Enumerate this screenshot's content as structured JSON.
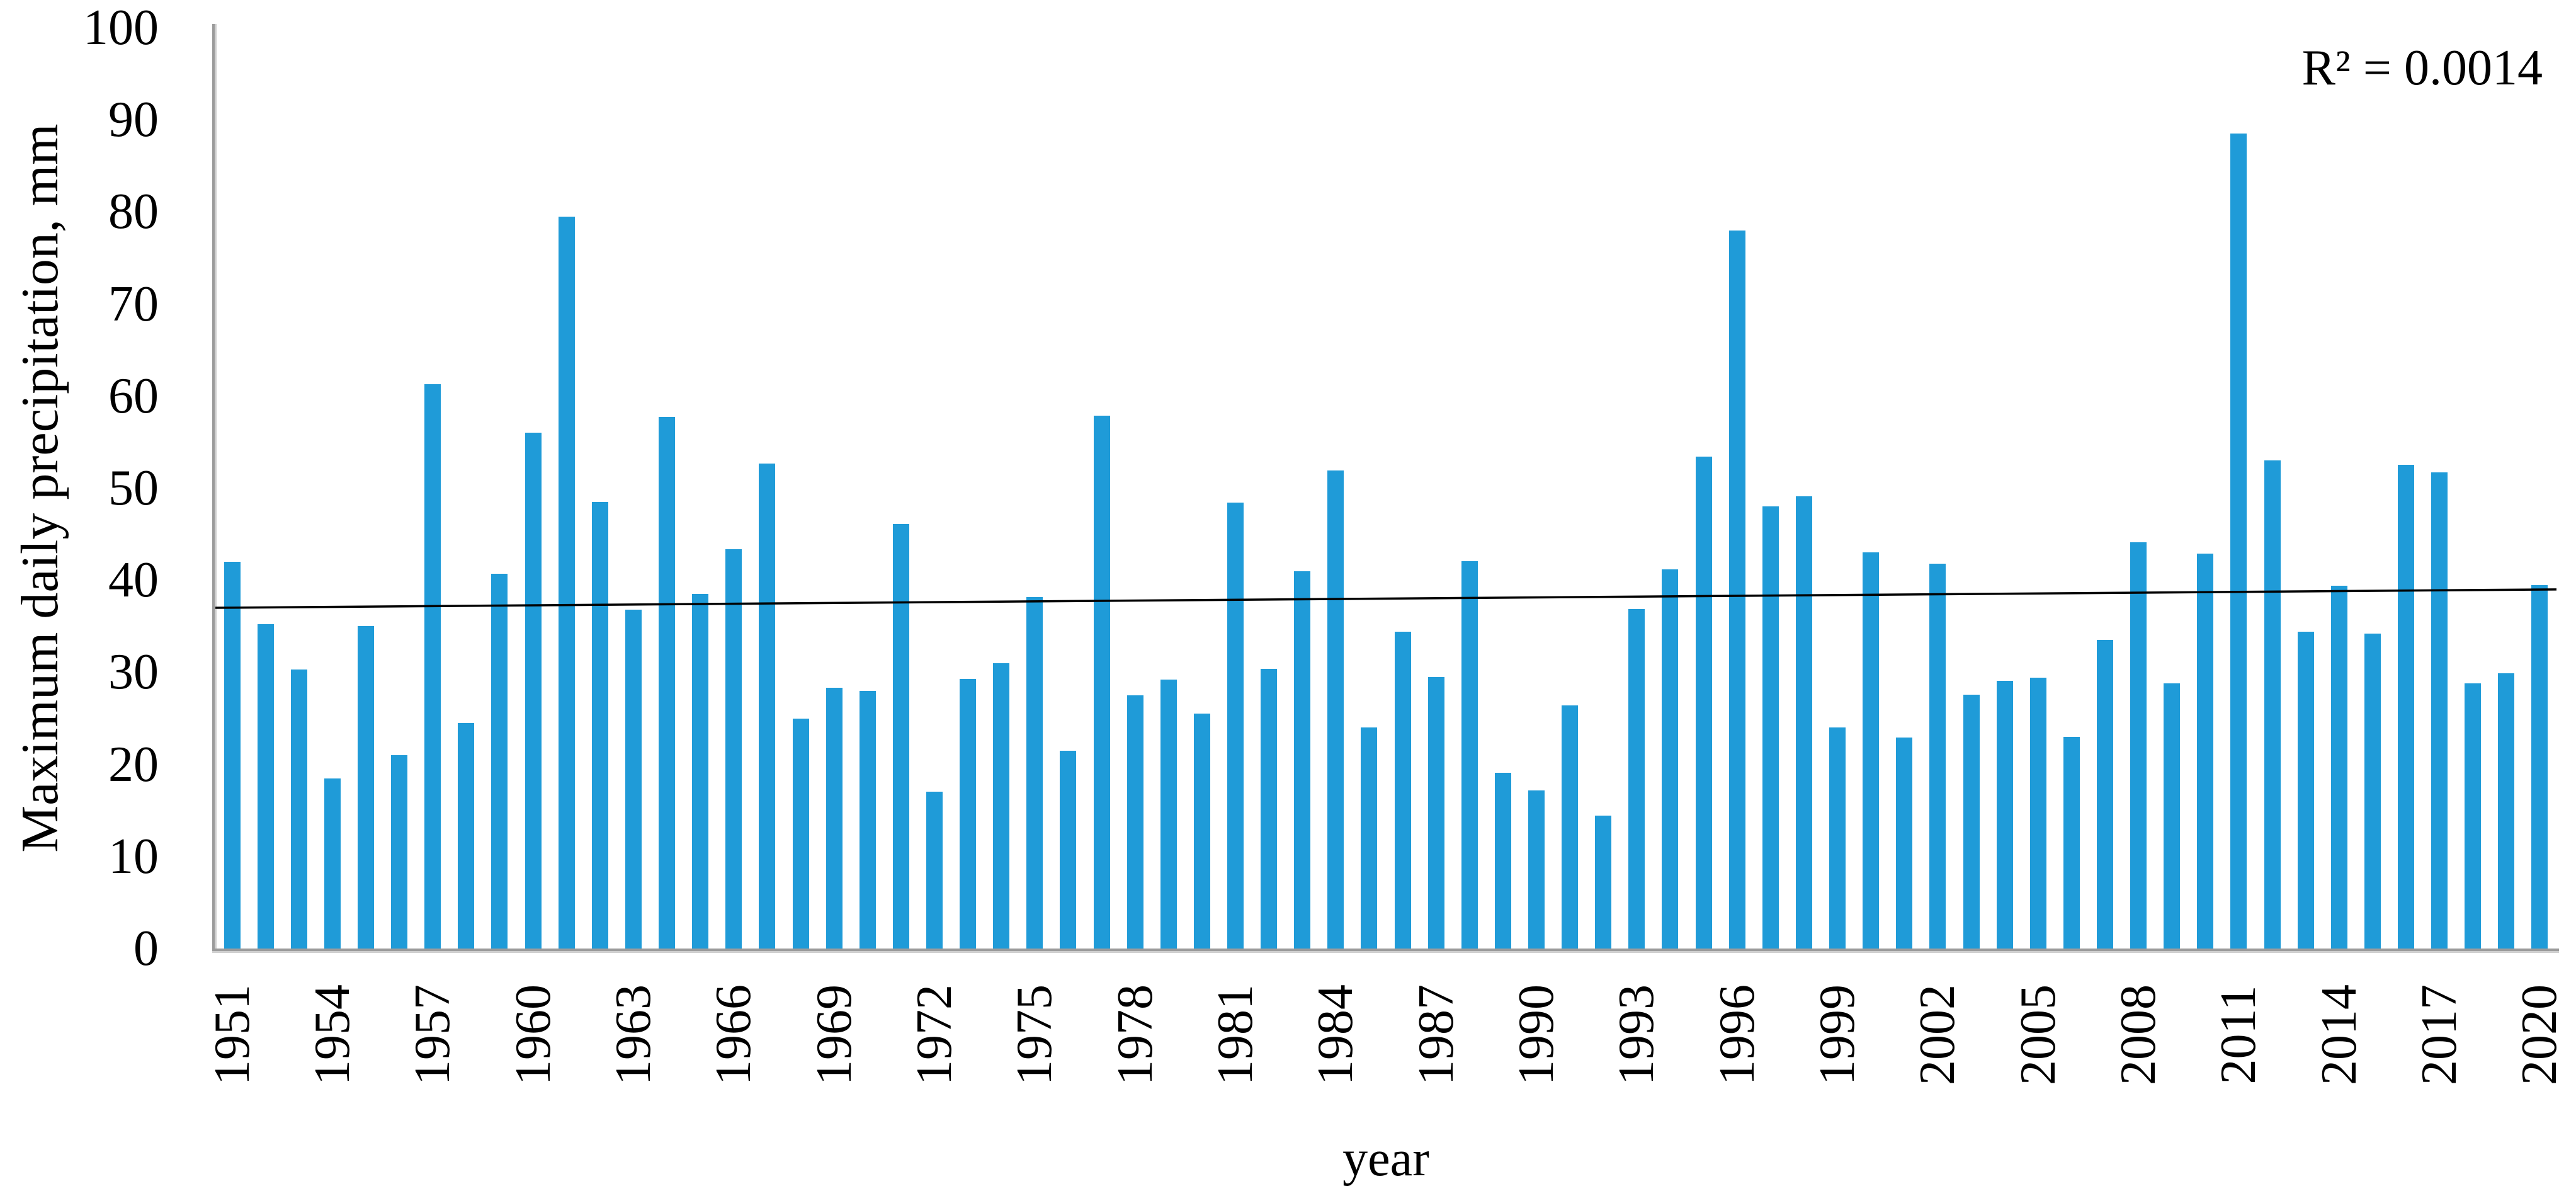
{
  "figure": {
    "background": "#ffffff"
  },
  "axes": {
    "y_title": "Maximum daily precipitation, mm",
    "x_title": "year",
    "y_ticks": [
      0,
      10,
      20,
      30,
      40,
      50,
      60,
      70,
      80,
      90,
      100
    ],
    "x_tick_labels": [
      "1951",
      "1954",
      "1957",
      "1960",
      "1963",
      "1966",
      "1969",
      "1972",
      "1975",
      "1978",
      "1981",
      "1984",
      "1987",
      "1990",
      "1993",
      "1996",
      "1999",
      "2002",
      "2005",
      "2008",
      "2011",
      "2014",
      "2017",
      "2020"
    ],
    "x_tick_step": 3
  },
  "annotations": {
    "r_squared": "R² = 0.0014"
  },
  "colors": {
    "bar": "#1f9bd8",
    "axis_line": "#9b9b9b",
    "trend_line": "#000000",
    "text": "#000000"
  },
  "chart_data": {
    "type": "bar",
    "title": "",
    "xlabel": "year",
    "ylabel": "Maximum daily precipitation, mm",
    "ylim": [
      0,
      100
    ],
    "grid": false,
    "legend_position": "none",
    "x": [
      1951,
      1952,
      1953,
      1954,
      1955,
      1956,
      1957,
      1958,
      1959,
      1960,
      1961,
      1962,
      1963,
      1964,
      1965,
      1966,
      1967,
      1968,
      1969,
      1970,
      1971,
      1972,
      1973,
      1974,
      1975,
      1976,
      1977,
      1978,
      1979,
      1980,
      1981,
      1982,
      1983,
      1984,
      1985,
      1986,
      1987,
      1988,
      1989,
      1990,
      1991,
      1992,
      1993,
      1994,
      1995,
      1996,
      1997,
      1998,
      1999,
      2000,
      2001,
      2002,
      2003,
      2004,
      2005,
      2006,
      2007,
      2008,
      2009,
      2010,
      2011,
      2012,
      2013,
      2014,
      2015,
      2016,
      2017,
      2018,
      2019,
      2020
    ],
    "values": [
      42,
      35.2,
      30.3,
      18.5,
      35,
      21,
      61.3,
      24.5,
      40.7,
      56,
      79.5,
      48.5,
      36.8,
      57.7,
      38.5,
      43.4,
      52.7,
      25,
      28.3,
      28,
      46.1,
      17,
      29.3,
      31,
      38.2,
      21.5,
      57.9,
      27.5,
      29.2,
      25.5,
      48.4,
      30.4,
      41,
      51.9,
      24,
      34.4,
      29.5,
      42.1,
      19.1,
      17.2,
      26.4,
      14.4,
      36.9,
      41.2,
      53.4,
      78,
      48,
      49.1,
      24,
      43,
      22.9,
      41.8,
      27.6,
      29.1,
      29.4,
      23,
      33.5,
      44.1,
      28.8,
      42.9,
      88.5,
      53,
      34.4,
      39.4,
      34.2,
      52.5,
      51.7,
      28.8,
      29.9,
      39.5
    ],
    "trendline": {
      "type": "linear",
      "start_value": 37.0,
      "end_value": 39.0,
      "r_squared": 0.0014
    }
  }
}
